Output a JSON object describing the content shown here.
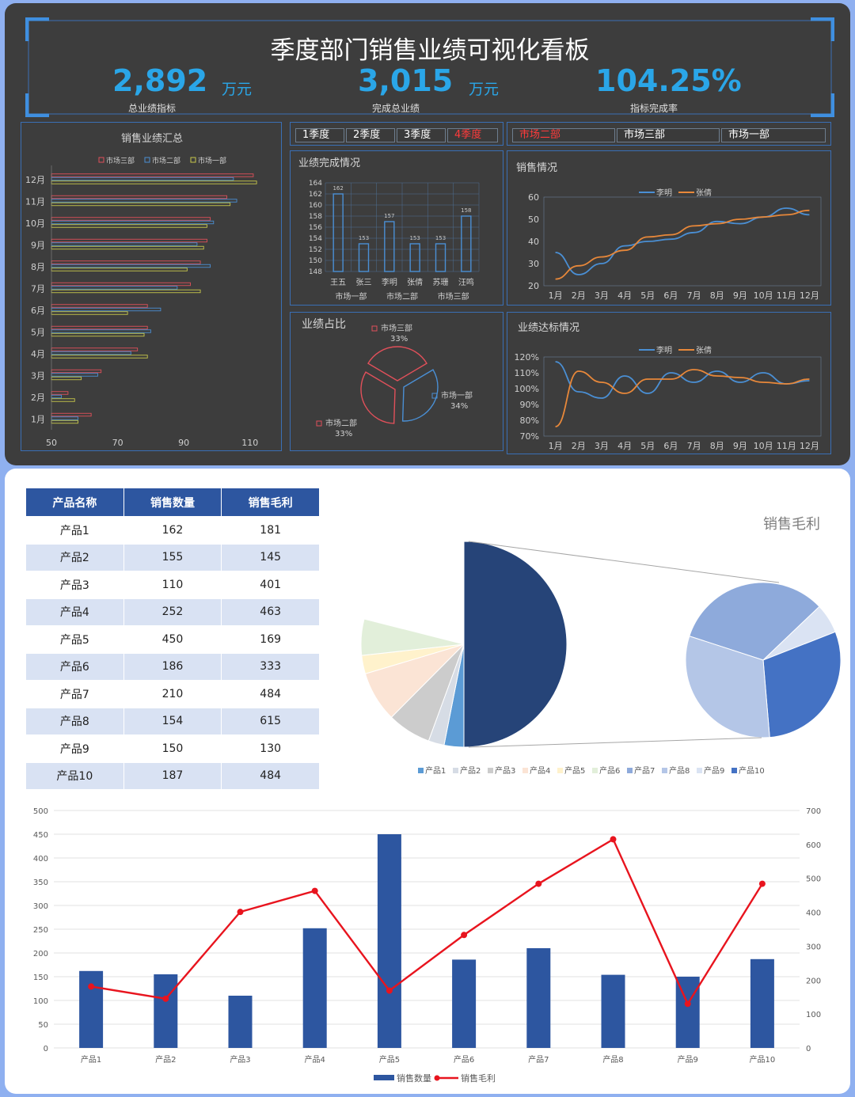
{
  "header": {
    "title": "季度部门销售业绩可视化看板",
    "kpis": [
      {
        "value": "2,892",
        "unit": "万元",
        "label": "总业绩指标"
      },
      {
        "value": "3,015",
        "unit": "万元",
        "label": "完成总业绩"
      },
      {
        "value": "104.25%",
        "unit": "",
        "label": "指标完成率"
      }
    ]
  },
  "quarters": {
    "items": [
      "1季度",
      "2季度",
      "3季度",
      "4季度"
    ],
    "active": 3
  },
  "markets": {
    "items": [
      "市场二部",
      "市场三部",
      "市场一部"
    ],
    "active": 0
  },
  "colors": {
    "accent": "#2aa6e8",
    "blue": "#4a8fd4",
    "red": "#e0505a",
    "yellow": "#c8c84a",
    "orange": "#e8883a",
    "navy": "#2d56a0",
    "lineRed": "#e8141e"
  },
  "summary": {
    "title": "销售业绩汇总",
    "legend": [
      "市场三部",
      "市场二部",
      "市场一部"
    ],
    "chart_data": {
      "type": "bar",
      "orientation": "horizontal",
      "categories": [
        "1月",
        "2月",
        "3月",
        "4月",
        "5月",
        "6月",
        "7月",
        "8月",
        "9月",
        "10月",
        "11月",
        "12月"
      ],
      "series": [
        {
          "name": "市场三部",
          "values": [
            62,
            55,
            65,
            76,
            79,
            79,
            92,
            95,
            97,
            98,
            103,
            111
          ]
        },
        {
          "name": "市场二部",
          "values": [
            58,
            53,
            64,
            74,
            80,
            83,
            88,
            98,
            94,
            99,
            106,
            105
          ]
        },
        {
          "name": "市场一部",
          "values": [
            58,
            57,
            59,
            79,
            78,
            73,
            95,
            91,
            96,
            97,
            104,
            112
          ]
        }
      ],
      "xticks": [
        "50",
        "70",
        "90",
        "110"
      ],
      "xlim": [
        50,
        117
      ]
    }
  },
  "completion": {
    "title": "业绩完成情况",
    "chart_data": {
      "type": "bar",
      "categories": [
        "王五",
        "张三",
        "李明",
        "张倩",
        "苏珊",
        "汪鸣"
      ],
      "groups": [
        "市场一部",
        "市场二部",
        "市场三部"
      ],
      "values": [
        162,
        153,
        157,
        153,
        153,
        158
      ],
      "labels": [
        "162",
        "153",
        "157",
        "153",
        "153",
        "158"
      ],
      "yticks": [
        "164",
        "162",
        "160",
        "158",
        "156",
        "154",
        "152",
        "150",
        "148"
      ],
      "ylim": [
        148,
        164
      ]
    }
  },
  "share": {
    "title": "业绩占比",
    "chart_data": {
      "type": "pie",
      "slices": [
        {
          "name": "市场三部",
          "value": 33,
          "label": "33%"
        },
        {
          "name": "市场一部",
          "value": 34,
          "label": "34%"
        },
        {
          "name": "市场二部",
          "value": 33,
          "label": "33%"
        }
      ]
    }
  },
  "salesLine": {
    "title": "销售情况",
    "chart_data": {
      "type": "line",
      "categories": [
        "1月",
        "2月",
        "3月",
        "4月",
        "5月",
        "6月",
        "7月",
        "8月",
        "9月",
        "10月",
        "11月",
        "12月"
      ],
      "series": [
        {
          "name": "李明",
          "values": [
            35,
            25,
            30,
            38,
            40,
            41,
            44,
            49,
            48,
            51,
            55,
            52
          ]
        },
        {
          "name": "张倩",
          "values": [
            23,
            29,
            33,
            36,
            42,
            43,
            47,
            48,
            50,
            51,
            52,
            54
          ]
        }
      ],
      "yticks": [
        "60",
        "50",
        "40",
        "30",
        "20"
      ],
      "ylim": [
        20,
        60
      ]
    }
  },
  "targetLine": {
    "title": "业绩达标情况",
    "chart_data": {
      "type": "line",
      "categories": [
        "1月",
        "2月",
        "3月",
        "4月",
        "5月",
        "6月",
        "7月",
        "8月",
        "9月",
        "10月",
        "11月",
        "12月"
      ],
      "series": [
        {
          "name": "李明",
          "values": [
            117,
            98,
            94,
            108,
            97,
            110,
            104,
            111,
            104,
            110,
            103,
            105
          ]
        },
        {
          "name": "张倩",
          "values": [
            76,
            111,
            104,
            97,
            106,
            106,
            112,
            108,
            107,
            104,
            103,
            106
          ]
        }
      ],
      "yticks": [
        "120%",
        "110%",
        "100%",
        "90%",
        "80%",
        "70%"
      ],
      "ylim": [
        70,
        120
      ]
    }
  },
  "table": {
    "headers": [
      "产品名称",
      "销售数量",
      "销售毛利"
    ],
    "rows": [
      [
        "产品1",
        "162",
        "181"
      ],
      [
        "产品2",
        "155",
        "145"
      ],
      [
        "产品3",
        "110",
        "401"
      ],
      [
        "产品4",
        "252",
        "463"
      ],
      [
        "产品5",
        "450",
        "169"
      ],
      [
        "产品6",
        "186",
        "333"
      ],
      [
        "产品7",
        "210",
        "484"
      ],
      [
        "产品8",
        "154",
        "615"
      ],
      [
        "产品9",
        "150",
        "130"
      ],
      [
        "产品10",
        "187",
        "484"
      ]
    ]
  },
  "profitPie": {
    "title": "销售毛利",
    "legend": [
      "产品1",
      "产品2",
      "产品3",
      "产品4",
      "产品5",
      "产品6",
      "产品7",
      "产品8",
      "产品9",
      "产品10"
    ],
    "chart_data": {
      "type": "pie",
      "subtype": "pie-of-pie",
      "categories": [
        "产品1",
        "产品2",
        "产品3",
        "产品4",
        "产品5",
        "产品6",
        "产品7",
        "产品8",
        "产品9",
        "产品10"
      ],
      "values": [
        181,
        145,
        401,
        463,
        169,
        333,
        484,
        615,
        130,
        484
      ],
      "colors": [
        "#5b9bd5",
        "#d6dce5",
        "#cccccc",
        "#fbe4d5",
        "#fff2cc",
        "#e2efda",
        "#8eaadb",
        "#b4c6e7",
        "#dae3f3",
        "#4472c4"
      ]
    }
  },
  "combo": {
    "legend": [
      "销售数量",
      "销售毛利"
    ],
    "chart_data": {
      "type": "bar",
      "categories": [
        "产品1",
        "产品2",
        "产品3",
        "产品4",
        "产品5",
        "产品6",
        "产品7",
        "产品8",
        "产品9",
        "产品10"
      ],
      "series": [
        {
          "name": "销售数量",
          "type": "bar",
          "axis": "left",
          "values": [
            162,
            155,
            110,
            252,
            450,
            186,
            210,
            154,
            150,
            187
          ]
        },
        {
          "name": "销售毛利",
          "type": "line",
          "axis": "right",
          "values": [
            181,
            145,
            401,
            463,
            169,
            333,
            484,
            615,
            130,
            484
          ]
        }
      ],
      "yticks_left": [
        "500",
        "450",
        "400",
        "350",
        "300",
        "250",
        "200",
        "150",
        "100",
        "50",
        "0"
      ],
      "yticks_right": [
        "700",
        "600",
        "500",
        "400",
        "300",
        "200",
        "100",
        "0"
      ],
      "ylim_left": [
        0,
        500
      ],
      "ylim_right": [
        0,
        700
      ]
    }
  }
}
